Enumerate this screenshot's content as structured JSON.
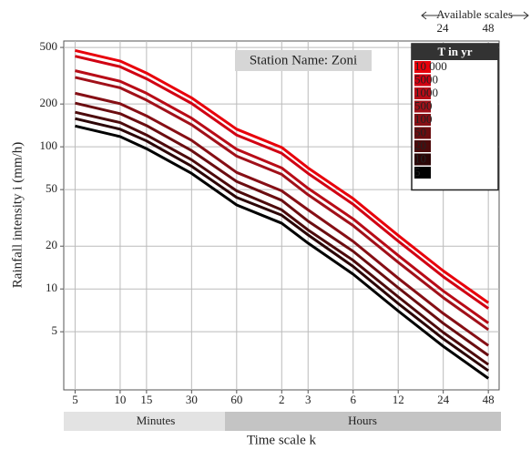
{
  "chart_data": {
    "type": "line",
    "y_label": "Rainfall intensity i (mm/h)",
    "x_label": "Time scale k",
    "annotation": "Station Name: Zoni",
    "top_note": {
      "text": "Available scales",
      "labels": [
        "24",
        "48"
      ]
    },
    "bands": [
      "Minutes",
      "Hours"
    ],
    "legend_title": "T in yr",
    "legend": "upper right",
    "log_x": true,
    "log_y": true,
    "grid": true,
    "x": [
      5,
      10,
      15,
      30,
      60,
      120,
      180,
      360,
      720,
      1440,
      2880
    ],
    "xlim": [
      4.2,
      3400
    ],
    "xticks": [
      5,
      10,
      15,
      30,
      60,
      {
        "value": 120,
        "label": "2"
      },
      {
        "value": 180,
        "label": "3"
      },
      {
        "value": 360,
        "label": "6"
      },
      {
        "value": 720,
        "label": "12"
      },
      {
        "value": 1440,
        "label": "24"
      },
      {
        "value": 2880,
        "label": "48"
      }
    ],
    "ylim": [
      1.95,
      555
    ],
    "yticks": [
      5,
      10,
      20,
      50,
      100,
      200,
      500
    ],
    "series": [
      {
        "name": "10 000",
        "color": "#e8000b",
        "values": [
          476,
          401,
          330,
          221,
          133,
          99,
          71,
          43.2,
          23.8,
          13.4,
          7.99
        ]
      },
      {
        "name": "5000",
        "color": "#d00012",
        "values": [
          434,
          366,
          301,
          202,
          121,
          90,
          65,
          39.4,
          21.7,
          12.2,
          7.29
        ]
      },
      {
        "name": "1000",
        "color": "#b80c17",
        "values": [
          343,
          289,
          238,
          159,
          96,
          71,
          51,
          31.1,
          17.2,
          9.68,
          5.76
        ]
      },
      {
        "name": "500",
        "color": "#a01019",
        "values": [
          308,
          260,
          213,
          143,
          86,
          64,
          46,
          27.9,
          15.4,
          8.69,
          5.17
        ]
      },
      {
        "name": "100",
        "color": "#860f15",
        "values": [
          238,
          201,
          165,
          111,
          66,
          49,
          36,
          21.6,
          11.9,
          6.72,
          4.0
        ]
      },
      {
        "name": "50",
        "color": "#6a0d10",
        "values": [
          203,
          171,
          141,
          94,
          57,
          42,
          30,
          18.4,
          10.2,
          5.73,
          3.41
        ]
      },
      {
        "name": "20",
        "color": "#4c0a0b",
        "values": [
          175,
          148,
          121,
          81,
          49,
          36,
          26,
          15.9,
          8.8,
          4.94,
          2.94
        ]
      },
      {
        "name": "10",
        "color": "#2b0506",
        "values": [
          158,
          133,
          110,
          73,
          44,
          33,
          24,
          14.4,
          7.9,
          4.46,
          2.66
        ]
      },
      {
        "name": "5",
        "color": "#000000",
        "values": [
          140,
          118,
          97,
          65,
          39,
          29,
          21,
          12.7,
          7,
          3.95,
          2.35
        ]
      }
    ]
  }
}
